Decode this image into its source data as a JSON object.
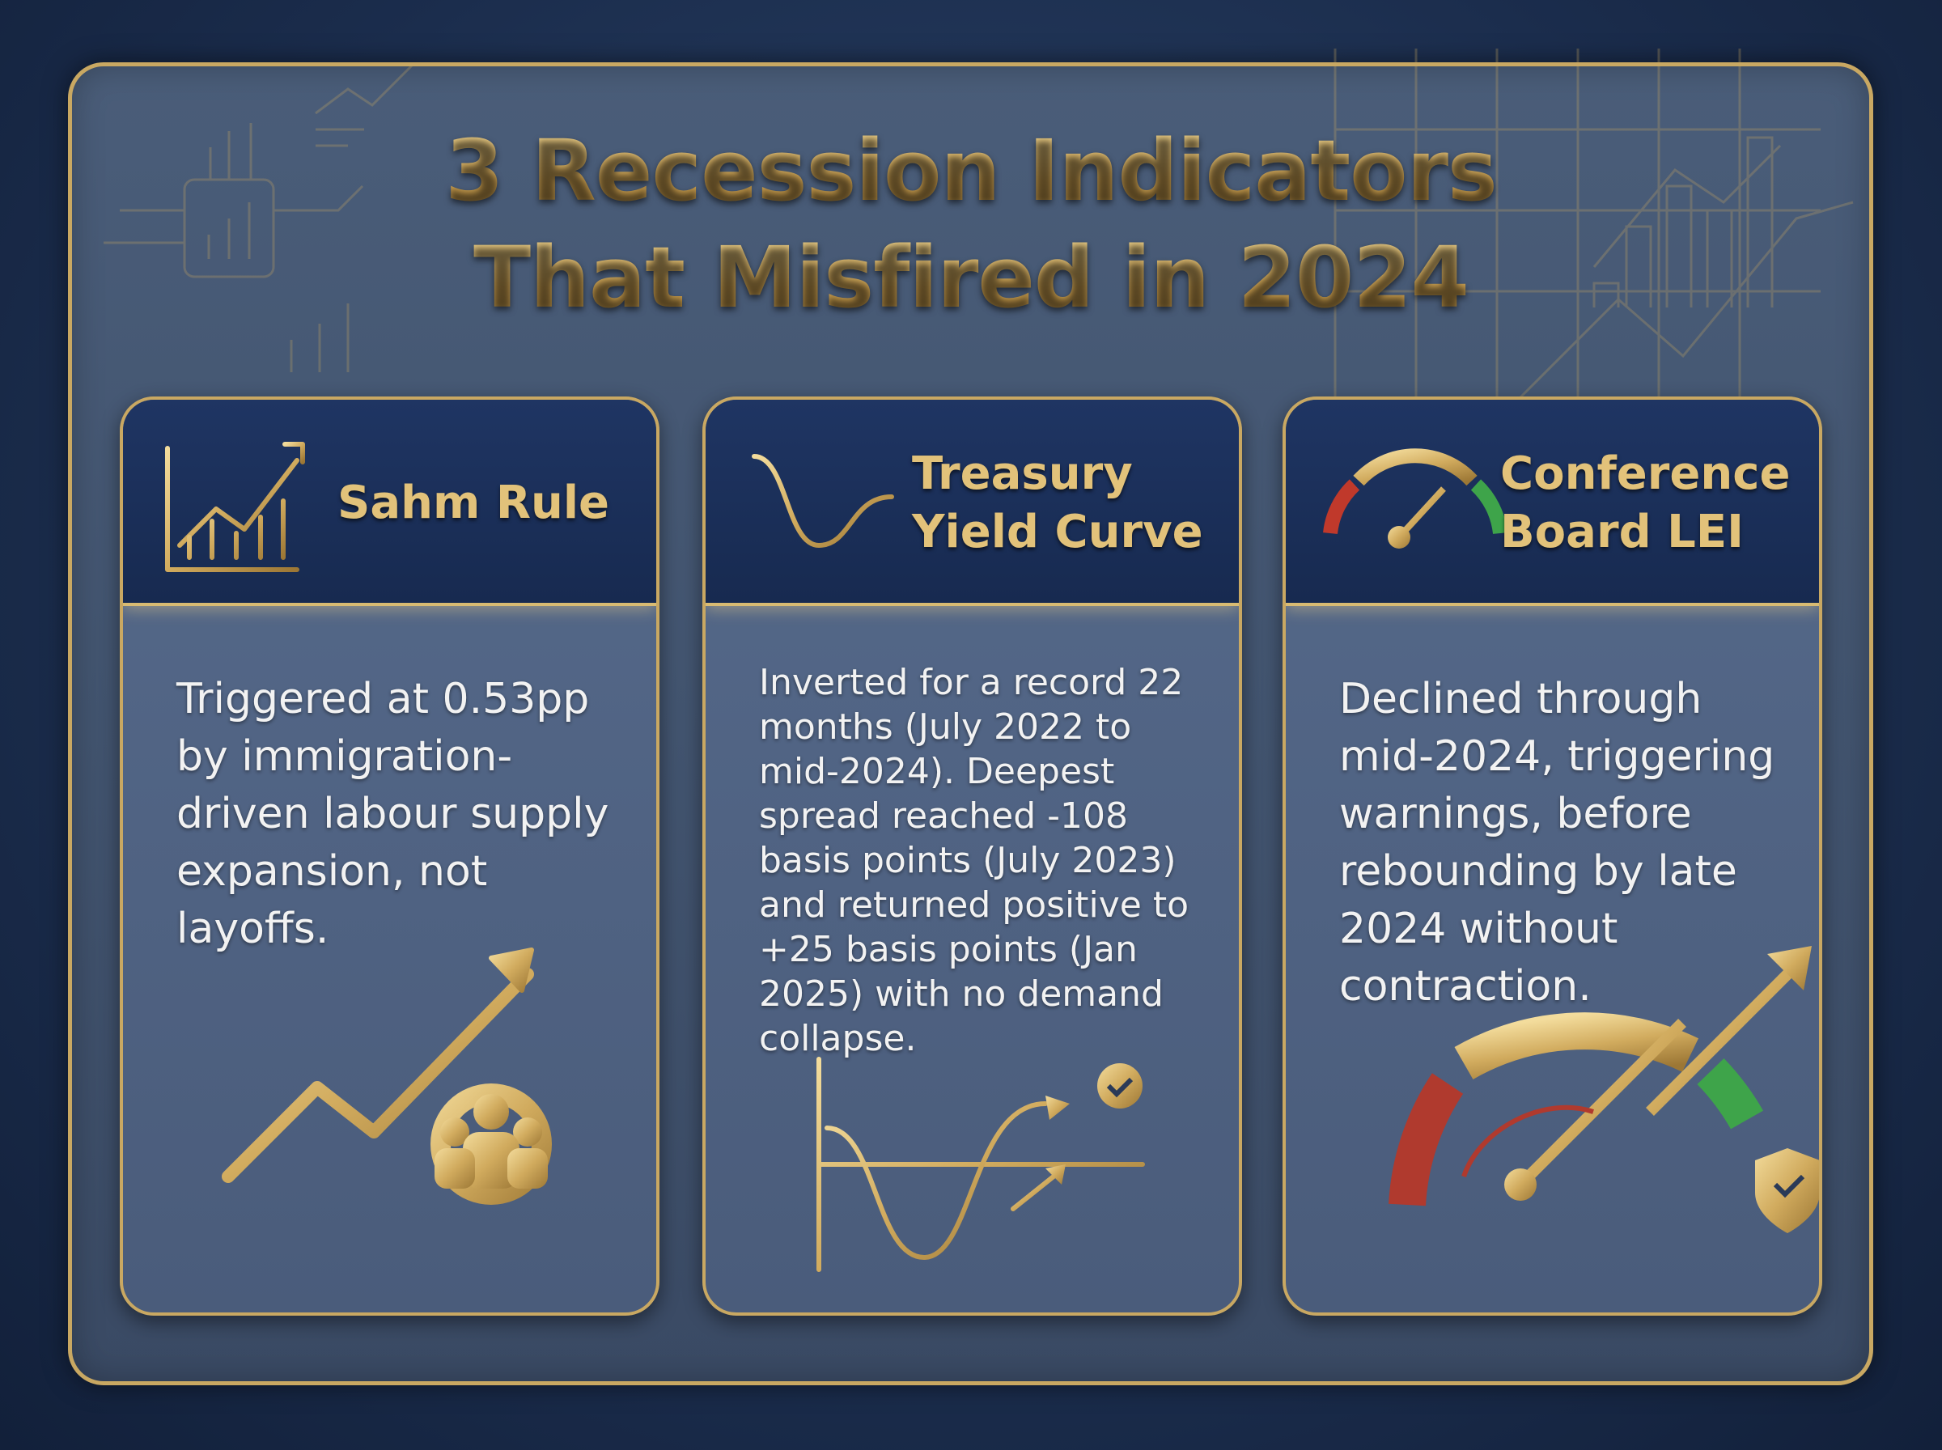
{
  "title": [
    "3 Recession Indicators",
    "That Misfired in 2024"
  ],
  "cards": [
    {
      "heading": "Sahm Rule",
      "body": "Triggered at 0.53pp by immigration-driven labour supply expansion, not layoffs."
    },
    {
      "heading": "Treasury Yield Curve",
      "body": "Inverted for a record 22 months (July 2022 to mid-2024). Deepest spread reached -108 basis points (July 2023) and returned positive to +25 basis points (Jan 2025) with no demand collapse."
    },
    {
      "heading": "Conference Board LEI",
      "body": "Declined through mid-2024, triggering warnings, before rebounding by late 2024 without contraction."
    }
  ]
}
